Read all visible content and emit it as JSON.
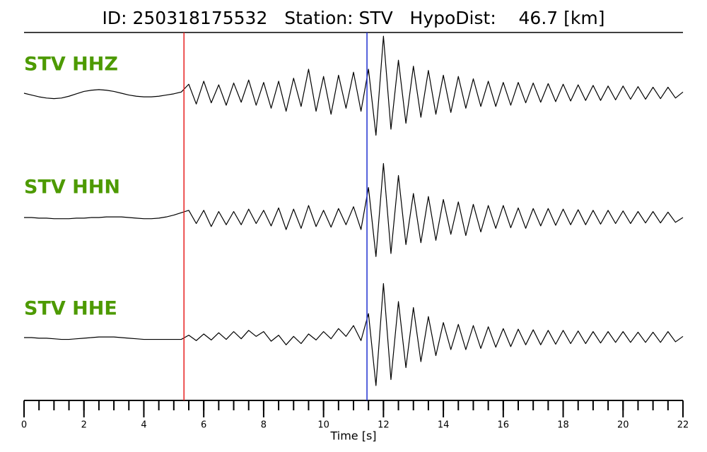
{
  "chart_data": {
    "type": "line",
    "title": "ID: 250318175532   Station: STV   HypoDist:    46.7 [km]",
    "xlabel": "Time [s]",
    "xlim": [
      0,
      22
    ],
    "xticks": [
      0,
      2,
      4,
      6,
      8,
      10,
      12,
      14,
      16,
      18,
      20,
      22
    ],
    "xticks_minor": [
      0,
      0.5,
      1,
      1.5,
      2,
      2.5,
      3,
      3.5,
      4,
      4.5,
      5,
      5.5,
      6,
      6.5,
      7,
      7.5,
      8,
      8.5,
      9,
      9.5,
      10,
      10.5,
      11,
      11.5,
      12,
      12.5,
      13,
      13.5,
      14,
      14.5,
      15,
      15.5,
      16,
      16.5,
      17,
      17.5,
      18,
      18.5,
      19,
      19.5,
      20,
      20.5,
      21,
      21.5,
      22
    ],
    "ylim": [
      -1,
      1
    ],
    "label_color": "#4d9a00",
    "vlines": [
      {
        "x": 5.34,
        "color": "#e8201f"
      },
      {
        "x": 11.45,
        "color": "#1f2fd0"
      }
    ],
    "x": [
      0,
      0.25,
      0.5,
      0.75,
      1,
      1.25,
      1.5,
      1.75,
      2,
      2.25,
      2.5,
      2.75,
      3,
      3.25,
      3.5,
      3.75,
      4,
      4.25,
      4.5,
      4.75,
      5,
      5.25,
      5.5,
      5.75,
      6,
      6.25,
      6.5,
      6.75,
      7,
      7.25,
      7.5,
      7.75,
      8,
      8.25,
      8.5,
      8.75,
      9,
      9.25,
      9.5,
      9.75,
      10,
      10.25,
      10.5,
      10.75,
      11,
      11.25,
      11.5,
      11.75,
      12,
      12.25,
      12.5,
      12.75,
      13,
      13.25,
      13.5,
      13.75,
      14,
      14.25,
      14.5,
      14.75,
      15,
      15.25,
      15.5,
      15.75,
      16,
      16.25,
      16.5,
      16.75,
      17,
      17.25,
      17.5,
      17.75,
      18,
      18.25,
      18.5,
      18.75,
      19,
      19.25,
      19.5,
      19.75,
      20,
      20.25,
      20.5,
      20.75,
      21,
      21.25,
      21.5,
      21.75,
      22
    ],
    "series": [
      {
        "name": "STV HHZ",
        "color": "#000000",
        "values": [
          0,
          -0.03,
          -0.06,
          -0.08,
          -0.09,
          -0.08,
          -0.05,
          -0.01,
          0.03,
          0.05,
          0.06,
          0.05,
          0.03,
          0,
          -0.03,
          -0.05,
          -0.06,
          -0.06,
          -0.05,
          -0.03,
          -0.01,
          0.02,
          0.15,
          -0.18,
          0.2,
          -0.16,
          0.14,
          -0.2,
          0.17,
          -0.15,
          0.22,
          -0.2,
          0.18,
          -0.25,
          0.2,
          -0.3,
          0.25,
          -0.22,
          0.4,
          -0.3,
          0.28,
          -0.35,
          0.3,
          -0.25,
          0.35,
          -0.3,
          0.4,
          -0.7,
          0.95,
          -0.6,
          0.55,
          -0.5,
          0.45,
          -0.4,
          0.38,
          -0.35,
          0.3,
          -0.32,
          0.28,
          -0.25,
          0.24,
          -0.22,
          0.2,
          -0.22,
          0.18,
          -0.2,
          0.18,
          -0.16,
          0.17,
          -0.15,
          0.16,
          -0.14,
          0.15,
          -0.13,
          0.14,
          -0.12,
          0.13,
          -0.12,
          0.12,
          -0.11,
          0.12,
          -0.1,
          0.11,
          -0.1,
          0.1,
          -0.09,
          0.1,
          -0.08,
          0.02
        ]
      },
      {
        "name": "STV HHN",
        "color": "#000000",
        "values": [
          0,
          0,
          -0.01,
          -0.01,
          -0.02,
          -0.02,
          -0.02,
          -0.01,
          -0.01,
          0,
          0,
          0.01,
          0.01,
          0.01,
          0,
          -0.01,
          -0.02,
          -0.02,
          -0.01,
          0.01,
          0.04,
          0.08,
          0.12,
          -0.1,
          0.12,
          -0.15,
          0.1,
          -0.12,
          0.1,
          -0.12,
          0.14,
          -0.1,
          0.12,
          -0.14,
          0.16,
          -0.2,
          0.14,
          -0.18,
          0.2,
          -0.15,
          0.12,
          -0.16,
          0.15,
          -0.12,
          0.18,
          -0.2,
          0.5,
          -0.65,
          0.9,
          -0.6,
          0.7,
          -0.45,
          0.4,
          -0.42,
          0.35,
          -0.38,
          0.3,
          -0.28,
          0.26,
          -0.3,
          0.22,
          -0.24,
          0.2,
          -0.18,
          0.2,
          -0.17,
          0.16,
          -0.18,
          0.15,
          -0.14,
          0.15,
          -0.13,
          0.14,
          -0.12,
          0.13,
          -0.12,
          0.12,
          -0.11,
          0.12,
          -0.1,
          0.11,
          -0.1,
          0.1,
          -0.09,
          0.1,
          -0.09,
          0.09,
          -0.08,
          0
        ]
      },
      {
        "name": "STV HHE",
        "color": "#000000",
        "values": [
          0,
          0,
          -0.01,
          -0.01,
          -0.02,
          -0.03,
          -0.03,
          -0.02,
          -0.01,
          0,
          0.01,
          0.01,
          0.01,
          0,
          -0.01,
          -0.02,
          -0.03,
          -0.03,
          -0.03,
          -0.03,
          -0.03,
          -0.03,
          0.04,
          -0.05,
          0.06,
          -0.04,
          0.08,
          -0.03,
          0.1,
          -0.02,
          0.12,
          0.02,
          0.1,
          -0.06,
          0.04,
          -0.12,
          0.02,
          -0.1,
          0.06,
          -0.04,
          0.1,
          -0.02,
          0.15,
          0.02,
          0.2,
          -0.05,
          0.4,
          -0.8,
          0.9,
          -0.7,
          0.6,
          -0.5,
          0.5,
          -0.4,
          0.35,
          -0.3,
          0.25,
          -0.2,
          0.22,
          -0.2,
          0.2,
          -0.18,
          0.18,
          -0.16,
          0.15,
          -0.15,
          0.14,
          -0.12,
          0.13,
          -0.12,
          0.12,
          -0.11,
          0.12,
          -0.1,
          0.11,
          -0.1,
          0.1,
          -0.09,
          0.1,
          -0.08,
          0.1,
          -0.08,
          0.09,
          -0.08,
          0.09,
          -0.08,
          0.1,
          -0.07,
          0.02
        ]
      }
    ]
  }
}
